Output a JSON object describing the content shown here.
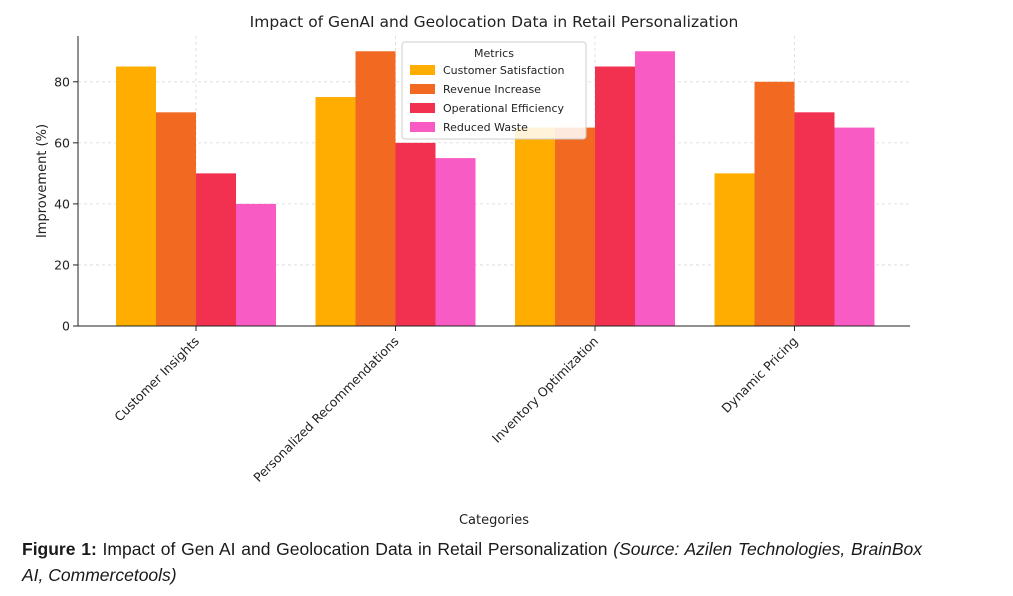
{
  "chart_data": {
    "type": "bar",
    "title": "Impact of GenAI and Geolocation Data in Retail Personalization",
    "xlabel": "Categories",
    "ylabel": "Improvement (%)",
    "categories": [
      "Customer Insights",
      "Personalized Recommendations",
      "Inventory Optimization",
      "Dynamic Pricing"
    ],
    "series": [
      {
        "name": "Customer Satisfaction",
        "color": "#ffad00",
        "values": [
          85,
          75,
          65,
          50
        ]
      },
      {
        "name": "Revenue Increase",
        "color": "#f26a22",
        "values": [
          70,
          90,
          65,
          80
        ]
      },
      {
        "name": "Operational Efficiency",
        "color": "#f2304f",
        "values": [
          50,
          60,
          85,
          70
        ]
      },
      {
        "name": "Reduced Waste",
        "color": "#f95bc4",
        "values": [
          40,
          55,
          90,
          65
        ]
      }
    ],
    "yticks": [
      0,
      20,
      40,
      60,
      80
    ],
    "ylim": [
      0,
      95
    ],
    "grid": true,
    "legend": {
      "title": "Metrics",
      "position": "upper-center"
    }
  },
  "caption": {
    "label": "Figure 1:",
    "text": "Impact of Gen AI and Geolocation Data in Retail Personalization",
    "source": "(Source: Azilen Technologies, BrainBox AI, Commercetools)"
  }
}
